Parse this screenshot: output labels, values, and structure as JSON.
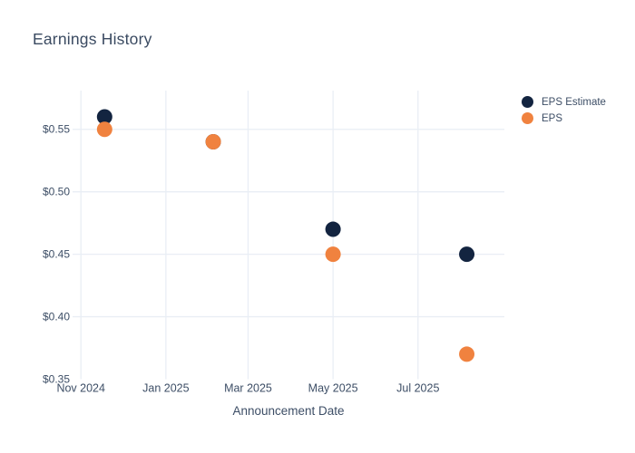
{
  "colors": {
    "background": "#ffffff",
    "grid": "#e9eef5",
    "axis_text": "#3d4e66",
    "title_text": "#3a4a61",
    "eps_estimate": "#132440",
    "eps": "#f0823f"
  },
  "chart_data": {
    "type": "scatter",
    "title": "Earnings History",
    "xlabel": "Announcement Date",
    "legend_position": "right",
    "grid": true,
    "marker_size_px": 17,
    "x_range": [
      "2024-10-26",
      "2025-09-01"
    ],
    "y_range": [
      0.35,
      0.581
    ],
    "x_ticks": [
      {
        "label": "Nov 2024",
        "date": "2024-11-01"
      },
      {
        "label": "Jan 2025",
        "date": "2025-01-01"
      },
      {
        "label": "Mar 2025",
        "date": "2025-03-01"
      },
      {
        "label": "May 2025",
        "date": "2025-05-01"
      },
      {
        "label": "Jul 2025",
        "date": "2025-07-01"
      }
    ],
    "y_ticks": [
      {
        "label": "$0.55",
        "value": 0.55
      },
      {
        "label": "$0.50",
        "value": 0.5
      },
      {
        "label": "$0.45",
        "value": 0.45
      },
      {
        "label": "$0.40",
        "value": 0.4
      },
      {
        "label": "$0.35",
        "value": 0.35
      }
    ],
    "series": [
      {
        "name": "EPS Estimate",
        "color": "#132440",
        "points": [
          {
            "date": "2024-11-18",
            "value": 0.56
          },
          {
            "date": "2025-02-04",
            "value": 0.54
          },
          {
            "date": "2025-05-01",
            "value": 0.47
          },
          {
            "date": "2025-08-05",
            "value": 0.45
          }
        ]
      },
      {
        "name": "EPS",
        "color": "#f0823f",
        "points": [
          {
            "date": "2024-11-18",
            "value": 0.55
          },
          {
            "date": "2025-02-04",
            "value": 0.54
          },
          {
            "date": "2025-05-01",
            "value": 0.45
          },
          {
            "date": "2025-08-05",
            "value": 0.37
          }
        ]
      }
    ]
  }
}
